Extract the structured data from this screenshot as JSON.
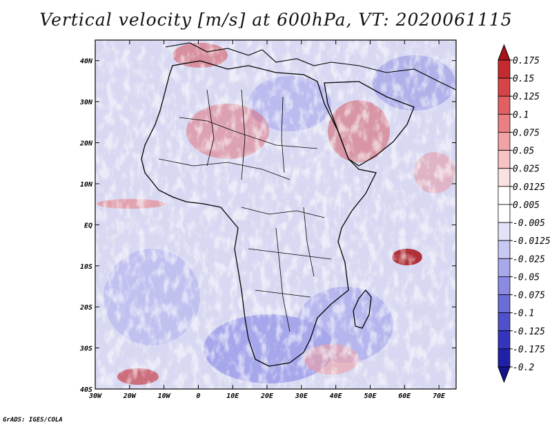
{
  "title": "Vertical velocity [m/s] at 600hPa, VT: 2020061115",
  "credit": "GrADS: IGES/COLA",
  "map": {
    "lon_range": [
      -30,
      75
    ],
    "lat_range": [
      -40,
      45
    ],
    "lon_ticks": [
      "30W",
      "20W",
      "10W",
      "0",
      "10E",
      "20E",
      "30E",
      "40E",
      "50E",
      "60E",
      "70E"
    ],
    "lat_ticks": [
      "40N",
      "30N",
      "20N",
      "10N",
      "EQ",
      "10S",
      "20S",
      "30S",
      "40S"
    ],
    "background": "#d8d8f2"
  },
  "colorbar": {
    "levels": [
      "0.175",
      "0.15",
      "0.125",
      "0.1",
      "0.075",
      "0.05",
      "0.025",
      "0.0125",
      "0.005",
      "-0.005",
      "-0.0125",
      "-0.025",
      "-0.05",
      "-0.075",
      "-0.1",
      "-0.125",
      "-0.175",
      "-0.2"
    ],
    "colors": [
      "#a81418",
      "#c42a2e",
      "#d64448",
      "#e26064",
      "#ea8084",
      "#f0a2a4",
      "#f6c2c4",
      "#fbe2e2",
      "#ffffff",
      "#ffffff",
      "#e2e2f8",
      "#c8c8f4",
      "#a8a8ec",
      "#8a8ae2",
      "#6c6cd8",
      "#5050cc",
      "#3434be",
      "#2020a8",
      "#14148c"
    ]
  }
}
